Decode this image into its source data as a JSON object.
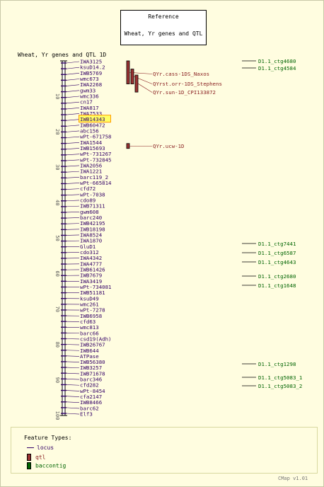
{
  "reference_box": {
    "title": "Reference",
    "subtitle": "Wheat, Yr genes and QTL"
  },
  "map_title": "Wheat, Yr genes and QTL 1D",
  "axis": {
    "min": 0,
    "max": 100,
    "ticks": [
      10,
      20,
      30,
      40,
      50,
      60,
      70,
      80,
      90,
      100
    ]
  },
  "markers": [
    "IWA3125",
    "ksuD14.2",
    "IWB5769",
    "wmc673",
    "IWA2268",
    "gwm33",
    "wmc336",
    "cn17",
    "IWA817",
    "IWA7533",
    "IWB14343",
    "IWB60472",
    "abc156",
    "wPt-671758",
    "IWA1544",
    "IWB15693",
    "wPt-731267",
    "wPt-732845",
    "IWA2056",
    "IWA1221",
    "barc119_2",
    "wPt-665814",
    "cfd72",
    "wPt-7038",
    "cdo89",
    "IWB71311",
    "gwm608",
    "barc240",
    "IWB42195",
    "IWB18198",
    "IWA8524",
    "IWA1870",
    "GluD1",
    "cdo312",
    "IWA4342",
    "IWA4777",
    "IWB61426",
    "IWB7679",
    "IWA3419",
    "wPt-734081",
    "IWB51181",
    "ksuD49",
    "wmc261",
    "wPt-7278",
    "IWB6958",
    "cfd63",
    "wmc813",
    "barc66",
    "csd19(Adh)",
    "IWB26767",
    "IWB644",
    "ATPase",
    "IWB56380",
    "IWB3257",
    "IWB71678",
    "barc346",
    "cfd282",
    "wPt-8454",
    "cfa2147",
    "IWB8466",
    "barc62",
    "Elf3"
  ],
  "highlighted_marker": "IWB14343",
  "qtls": [
    {
      "label": "QYr.cass-1DS_Naxos",
      "start": 0,
      "end": 6.5
    },
    {
      "label": "QYrst.orr-1DS_Stephens",
      "start": 2.3,
      "end": 6.5
    },
    {
      "label": "QYr.sun-1D_CPI133872",
      "start": 4.0,
      "end": 8.8
    },
    {
      "label": "QYr.ucw-1D",
      "start": 23.3,
      "end": 24.7
    }
  ],
  "contigs": [
    "D1.1_ctg4680",
    "D1.1_ctg4584",
    "D1.1_ctg7441",
    "D1.1_ctg6587",
    "D1.1_ctg4643",
    "D1.1_ctg2680",
    "D1.1_ctg1648",
    "D1.1_ctg1298",
    "D1.1_ctg5083_1",
    "D1.1_ctg5083_2"
  ],
  "legend": {
    "title": "Feature Types:",
    "items": [
      "locus",
      "qtl",
      "baccontig"
    ]
  },
  "footer": "CMap v1.01",
  "colors": {
    "background": "#fffde0",
    "chromosome": "#000000",
    "marker": "#330066",
    "highlight_fill": "#ffff66",
    "highlight_border": "#ff9900",
    "qtl_fill": "#9b3232",
    "qtl_text": "#8b2222",
    "contig": "#006400"
  }
}
